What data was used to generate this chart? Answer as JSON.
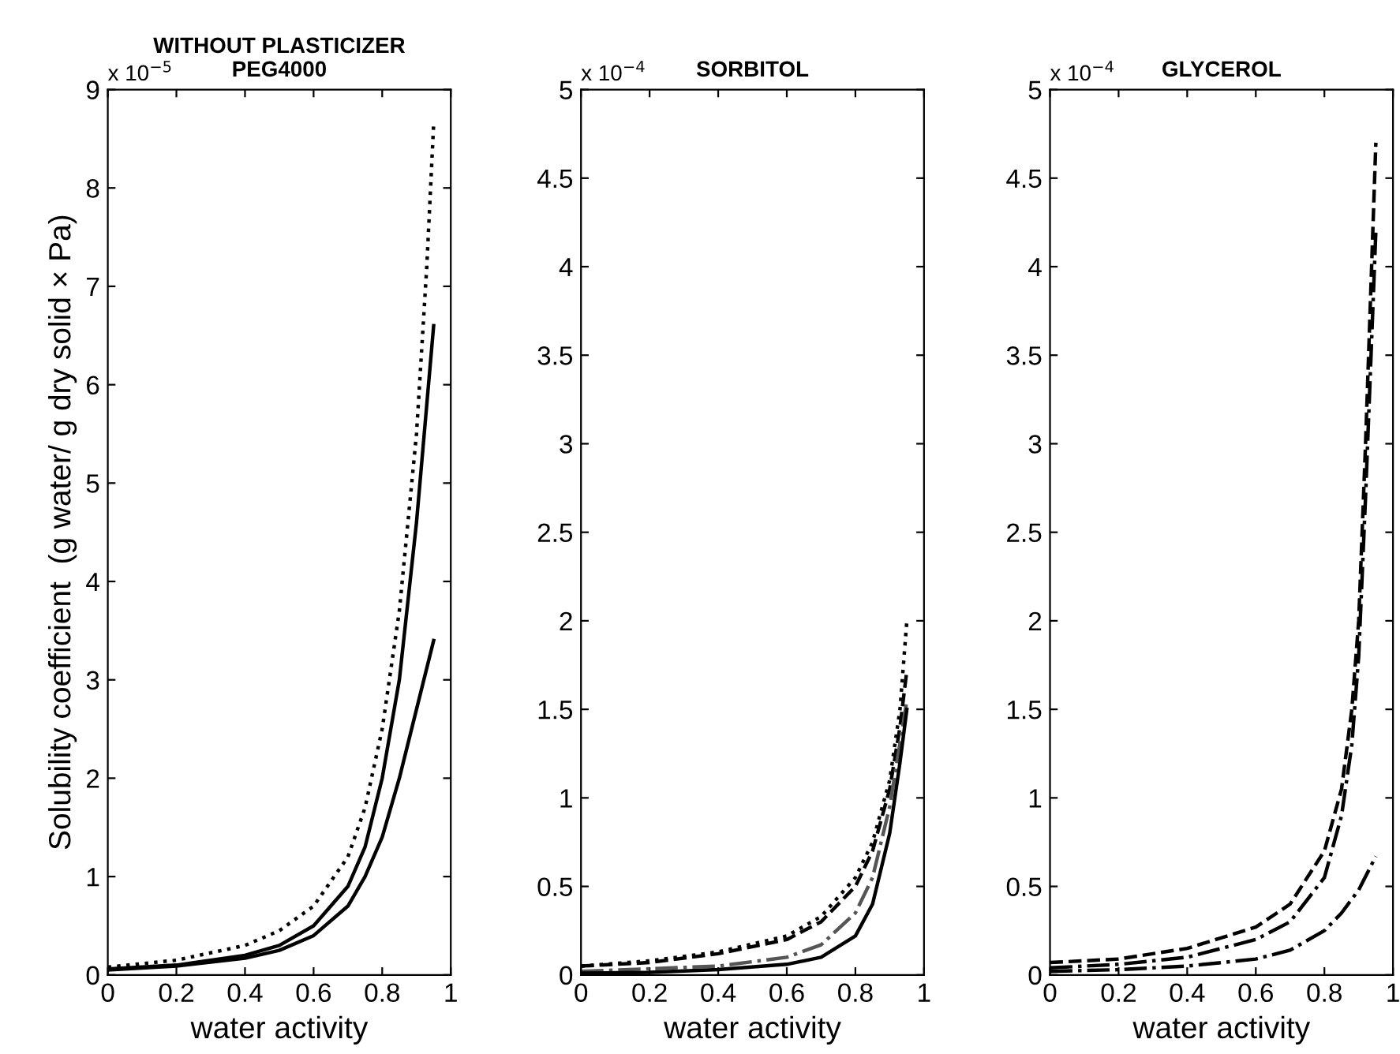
{
  "chart_data": [
    {
      "type": "line",
      "title": "WITHOUT PLASTICIZER\nPEG4000",
      "xlabel": "water activity",
      "ylabel": "Solubility coefficient  (g water/ g dry solid × Pa)",
      "annotations": [
        "x 10$^{−5}$"
      ],
      "xlim": [
        0,
        1
      ],
      "xticks": [
        0,
        0.2,
        0.4,
        0.6,
        0.8,
        1
      ],
      "ylim": [
        0,
        9
      ],
      "yticks": [
        0,
        1,
        2,
        3,
        4,
        5,
        6,
        7,
        8,
        9
      ],
      "grid": false,
      "legend": false,
      "series": [
        {
          "color": "#000000",
          "line_style": "dotted",
          "x": [
            0,
            0.2,
            0.4,
            0.5,
            0.6,
            0.7,
            0.75,
            0.8,
            0.85,
            0.9,
            0.93,
            0.95
          ],
          "values": [
            0.08,
            0.15,
            0.3,
            0.45,
            0.7,
            1.2,
            1.7,
            2.5,
            3.7,
            5.5,
            7.2,
            8.65
          ]
        },
        {
          "color": "#000000",
          "line_style": "solid",
          "x": [
            0,
            0.2,
            0.4,
            0.5,
            0.6,
            0.7,
            0.75,
            0.8,
            0.85,
            0.9,
            0.93,
            0.95
          ],
          "values": [
            0.06,
            0.1,
            0.2,
            0.3,
            0.5,
            0.9,
            1.3,
            2.0,
            3.0,
            4.6,
            5.8,
            6.6
          ]
        },
        {
          "color": "#000000",
          "line_style": "solid",
          "x": [
            0,
            0.2,
            0.4,
            0.5,
            0.6,
            0.7,
            0.75,
            0.8,
            0.85,
            0.9,
            0.95
          ],
          "values": [
            0.05,
            0.09,
            0.17,
            0.25,
            0.4,
            0.7,
            1.0,
            1.4,
            2.0,
            2.7,
            3.4
          ]
        }
      ]
    },
    {
      "type": "line",
      "title": "SORBITOL",
      "xlabel": "water activity",
      "annotations": [
        "x 10$^{−4}$"
      ],
      "xlim": [
        0,
        1
      ],
      "xticks": [
        0,
        0.2,
        0.4,
        0.6,
        0.8,
        1
      ],
      "ylim": [
        0,
        5
      ],
      "yticks": [
        0,
        0.5,
        1,
        1.5,
        2,
        2.5,
        3,
        3.5,
        4,
        4.5,
        5
      ],
      "grid": false,
      "legend": false,
      "series": [
        {
          "color": "#000000",
          "line_style": "dotted",
          "x": [
            0,
            0.2,
            0.4,
            0.6,
            0.7,
            0.8,
            0.85,
            0.9,
            0.93,
            0.95
          ],
          "values": [
            0.05,
            0.08,
            0.13,
            0.22,
            0.33,
            0.55,
            0.75,
            1.1,
            1.5,
            2.0
          ]
        },
        {
          "color": "#000000",
          "line_style": "dashed",
          "x": [
            0,
            0.2,
            0.4,
            0.6,
            0.7,
            0.8,
            0.85,
            0.9,
            0.93,
            0.95
          ],
          "values": [
            0.05,
            0.07,
            0.12,
            0.2,
            0.3,
            0.5,
            0.7,
            1.05,
            1.4,
            1.72
          ]
        },
        {
          "color": "#555555",
          "line_style": "dashdot",
          "x": [
            0,
            0.4,
            0.6,
            0.7,
            0.8,
            0.85,
            0.9,
            0.95
          ],
          "values": [
            0.02,
            0.05,
            0.1,
            0.17,
            0.35,
            0.55,
            0.95,
            1.55
          ]
        },
        {
          "color": "#000000",
          "line_style": "solid",
          "x": [
            0,
            0.2,
            0.4,
            0.6,
            0.7,
            0.8,
            0.85,
            0.9,
            0.93,
            0.95
          ],
          "values": [
            0.01,
            0.015,
            0.03,
            0.06,
            0.1,
            0.22,
            0.4,
            0.8,
            1.2,
            1.5
          ]
        }
      ]
    },
    {
      "type": "line",
      "title": "GLYCEROL",
      "xlabel": "water activity",
      "annotations": [
        "x 10$^{−4}$"
      ],
      "xlim": [
        0,
        1
      ],
      "xticks": [
        0,
        0.2,
        0.4,
        0.6,
        0.8,
        1
      ],
      "ylim": [
        0,
        5
      ],
      "yticks": [
        0,
        0.5,
        1,
        1.5,
        2,
        2.5,
        3,
        3.5,
        4,
        4.5,
        5
      ],
      "grid": false,
      "legend": false,
      "series": [
        {
          "color": "#000000",
          "line_style": "dashed",
          "x": [
            0,
            0.2,
            0.4,
            0.6,
            0.7,
            0.8,
            0.85,
            0.88,
            0.9,
            0.92,
            0.95
          ],
          "values": [
            0.07,
            0.09,
            0.15,
            0.27,
            0.4,
            0.7,
            1.05,
            1.5,
            2.0,
            3.0,
            4.7
          ]
        },
        {
          "color": "#000000",
          "line_style": "dashdot",
          "x": [
            0,
            0.2,
            0.4,
            0.6,
            0.7,
            0.8,
            0.85,
            0.88,
            0.9,
            0.92,
            0.95
          ],
          "values": [
            0.04,
            0.06,
            0.1,
            0.2,
            0.3,
            0.55,
            0.9,
            1.3,
            1.8,
            2.7,
            4.2
          ]
        },
        {
          "color": "#000000",
          "line_style": "dashdot",
          "x": [
            0,
            0.2,
            0.4,
            0.6,
            0.7,
            0.8,
            0.85,
            0.9,
            0.95
          ],
          "values": [
            0.02,
            0.03,
            0.05,
            0.09,
            0.14,
            0.25,
            0.35,
            0.48,
            0.67
          ]
        }
      ]
    }
  ]
}
